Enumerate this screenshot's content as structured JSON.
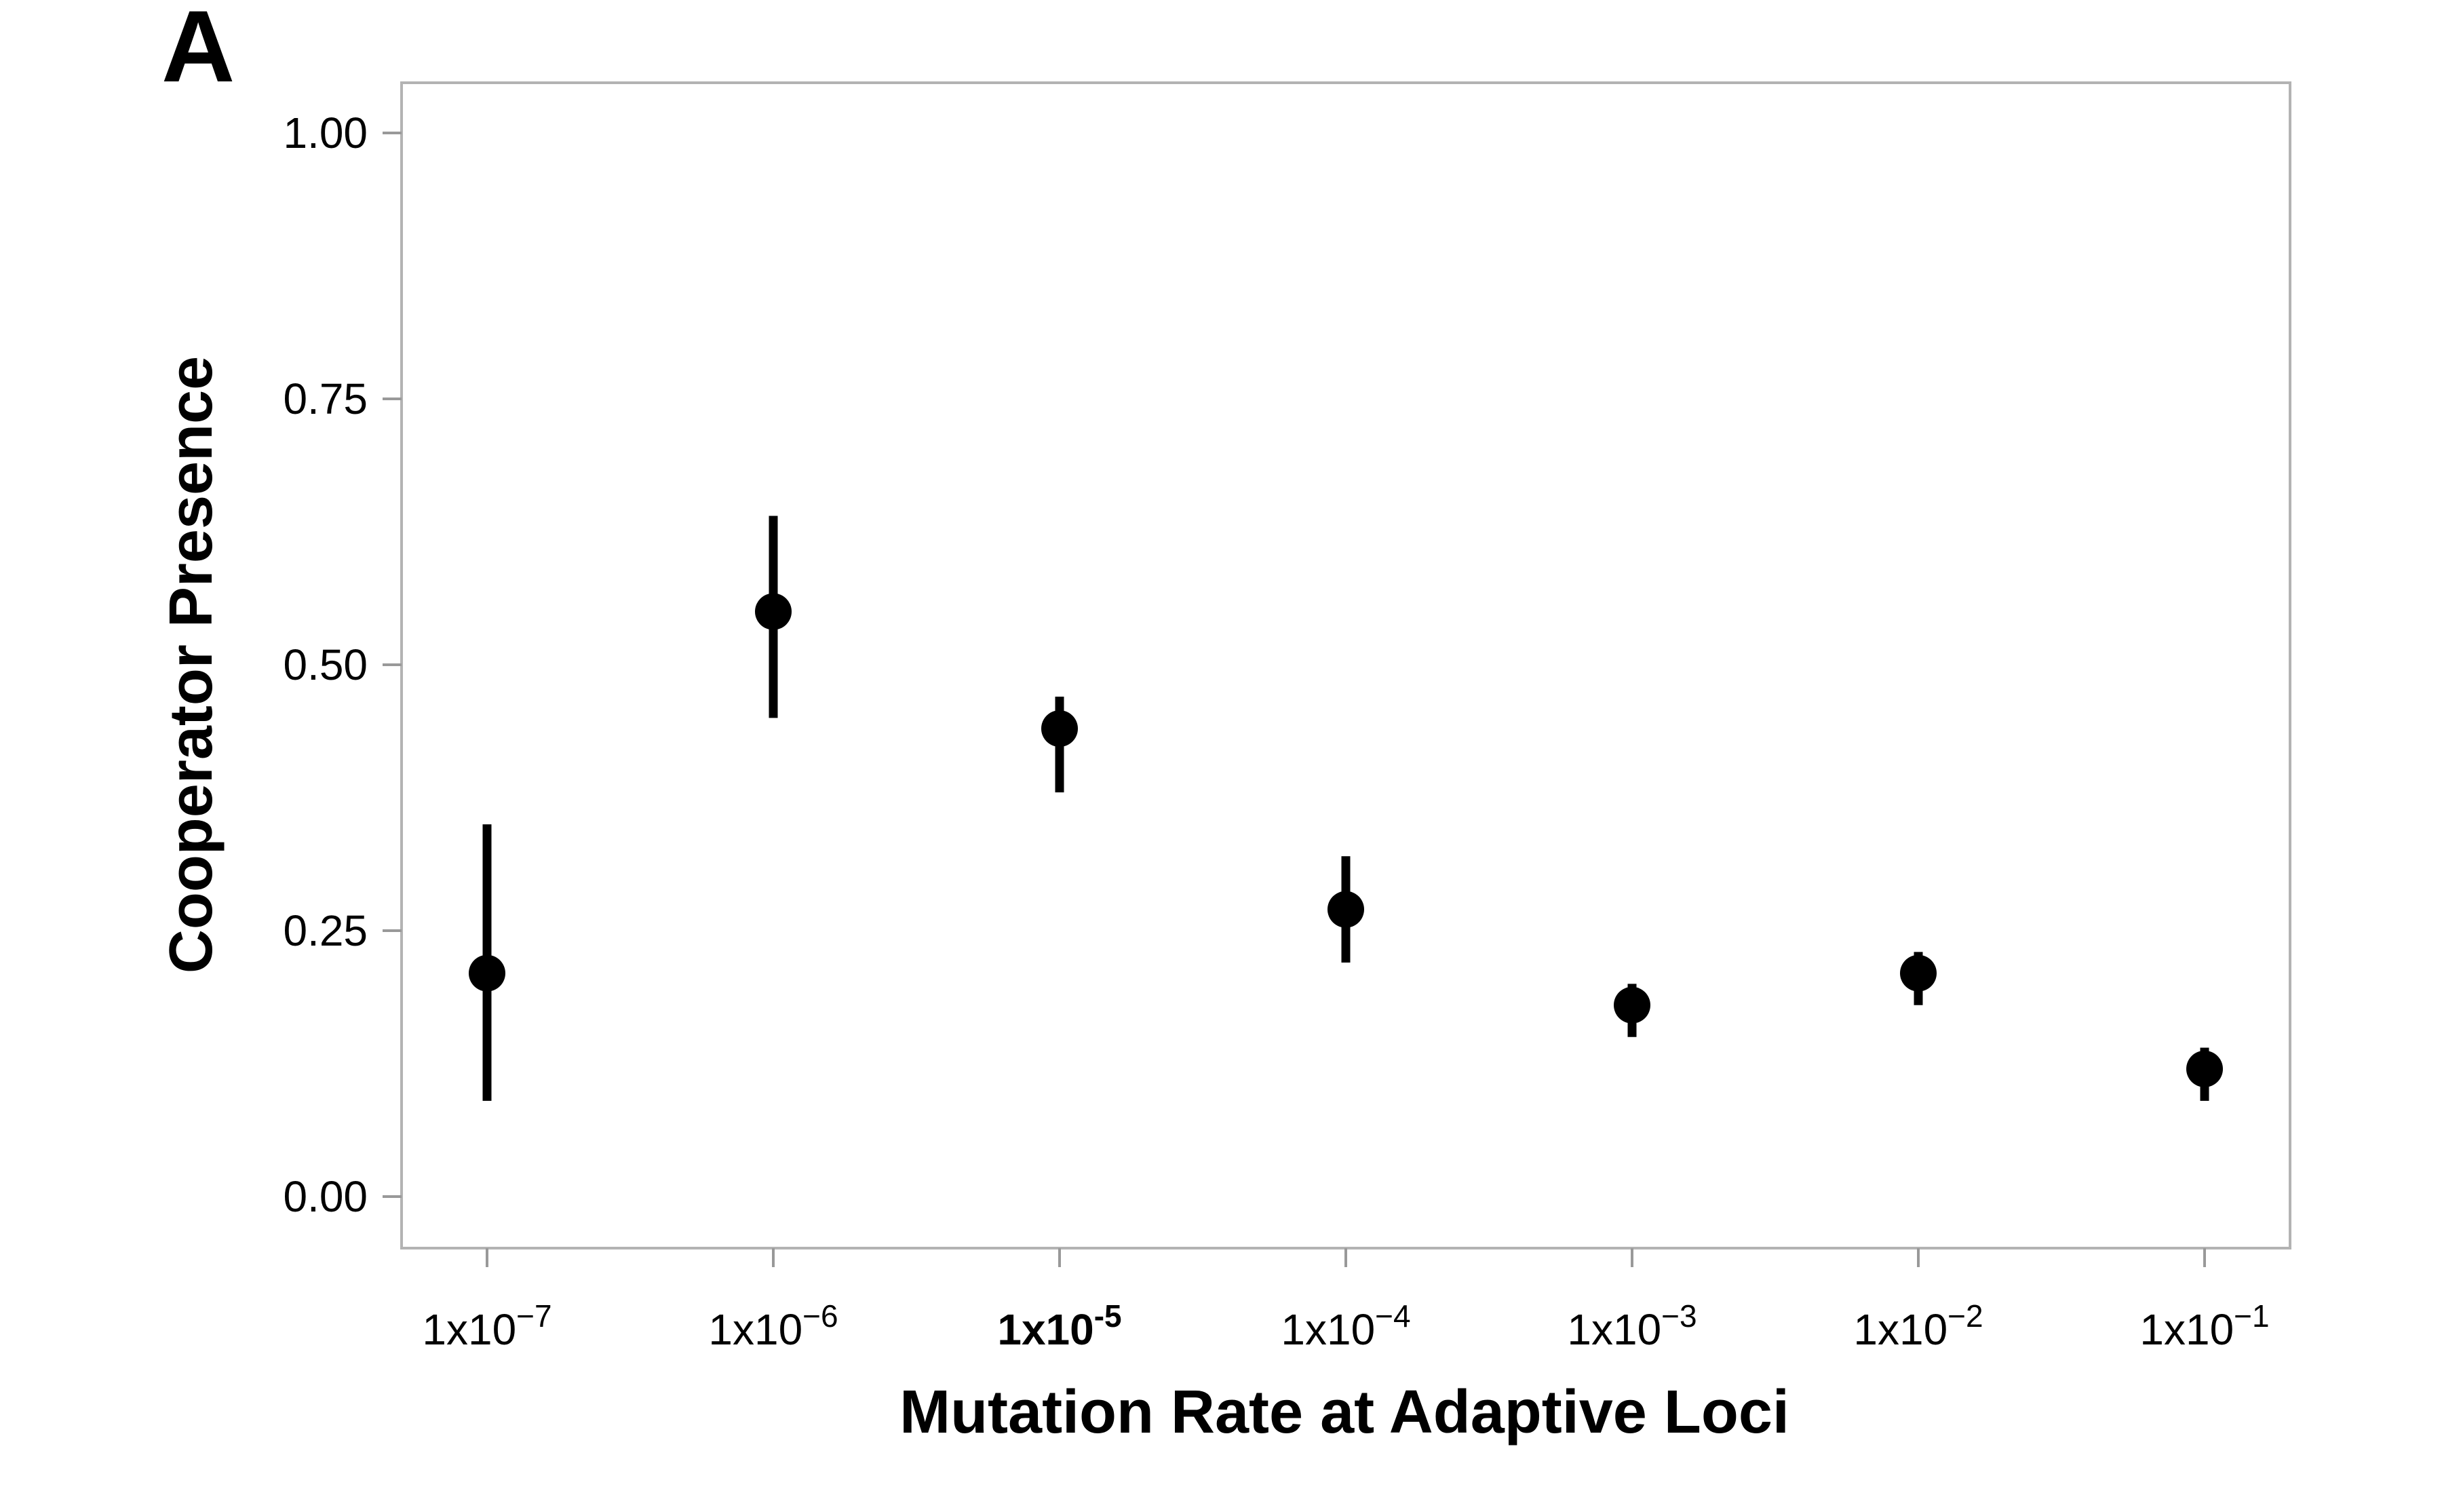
{
  "panel_label": "A",
  "chart_data": {
    "type": "scatter",
    "title": "",
    "xlabel": "Mutation Rate at Adaptive Loci",
    "ylabel": "Cooperator Presence",
    "x_scale": "log",
    "categories": [
      "1x10^-7",
      "1x10^-6",
      "1x10^-5",
      "1x10^-4",
      "1x10^-3",
      "1x10^-2",
      "1x10^-1"
    ],
    "x_tick_labels": [
      {
        "base": "1x10",
        "exp": "−7",
        "bold": false
      },
      {
        "base": "1x10",
        "exp": "−6",
        "bold": false
      },
      {
        "base": "1x10",
        "exp": "-5",
        "bold": true
      },
      {
        "base": "1x10",
        "exp": "−4",
        "bold": false
      },
      {
        "base": "1x10",
        "exp": "−3",
        "bold": false
      },
      {
        "base": "1x10",
        "exp": "−2",
        "bold": false
      },
      {
        "base": "1x10",
        "exp": "−1",
        "bold": false
      }
    ],
    "values": [
      0.21,
      0.55,
      0.44,
      0.27,
      0.18,
      0.21,
      0.12
    ],
    "error_low": [
      0.09,
      0.45,
      0.38,
      0.22,
      0.15,
      0.18,
      0.09
    ],
    "error_high": [
      0.35,
      0.64,
      0.47,
      0.32,
      0.2,
      0.23,
      0.14
    ],
    "y_ticks": [
      0,
      0.25,
      0.5,
      0.75,
      1.0
    ],
    "y_tick_labels": [
      "0.00",
      "0.25",
      "0.50",
      "0.75",
      "1.00"
    ],
    "ylim": [
      -0.05,
      1.05
    ],
    "grid": false,
    "legend": "none",
    "colors": {
      "points": "#000000",
      "frame": "#b3b3b3",
      "ticks": "#999999"
    }
  }
}
